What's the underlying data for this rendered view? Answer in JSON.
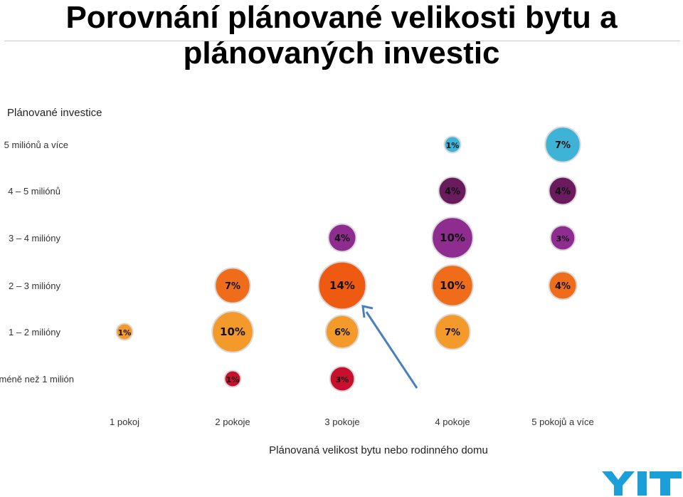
{
  "title": "Porovnání plánované velikosti bytu a plánovaných investic",
  "chart_data": {
    "type": "bubble",
    "title": "Porovnání plánované velikosti bytu a plánovaných investic",
    "ylabel": "Plánované investice",
    "xlabel": "Plánovaná velikost bytu nebo rodinného domu",
    "x_categories": [
      "1 pokoj",
      "2 pokoje",
      "3 pokoje",
      "4 pokoje",
      "5 pokojů a více"
    ],
    "y_categories": [
      "méně než 1 milión",
      "1 2 milióny",
      "2 3 milióny",
      "3 4 milióny",
      "4 5 miliónů",
      "5 miliónů a více"
    ],
    "y_category_labels": [
      "méně než 1 milión",
      "1 – 2 milióny",
      "2 – 3 milióny",
      "3 – 4 milióny",
      "4 – 5 miliónů",
      "5 miliónů a více"
    ],
    "points": [
      {
        "x": "1 pokoj",
        "y": "1 2 milióny",
        "value": 1,
        "label": "1%",
        "color": "#f39a2b"
      },
      {
        "x": "2 pokoje",
        "y": "méně než 1 milión",
        "value": 1,
        "label": "1%",
        "color": "#c8102e"
      },
      {
        "x": "2 pokoje",
        "y": "1 2 milióny",
        "value": 10,
        "label": "10%",
        "color": "#f39a2b"
      },
      {
        "x": "2 pokoje",
        "y": "2 3 milióny",
        "value": 7,
        "label": "7%",
        "color": "#ef6c1a"
      },
      {
        "x": "3 pokoje",
        "y": "méně než 1 milión",
        "value": 3,
        "label": "3%",
        "color": "#c8102e"
      },
      {
        "x": "3 pokoje",
        "y": "1 2 milióny",
        "value": 6,
        "label": "6%",
        "color": "#f39a2b"
      },
      {
        "x": "3 pokoje",
        "y": "2 3 milióny",
        "value": 14,
        "label": "14%",
        "color": "#ef5a12"
      },
      {
        "x": "3 pokoje",
        "y": "3 4 milióny",
        "value": 4,
        "label": "4%",
        "color": "#8e2d8f"
      },
      {
        "x": "4 pokoje",
        "y": "1 2 milióny",
        "value": 7,
        "label": "7%",
        "color": "#f39a2b"
      },
      {
        "x": "4 pokoje",
        "y": "2 3 milióny",
        "value": 10,
        "label": "10%",
        "color": "#ef6c1a"
      },
      {
        "x": "4 pokoje",
        "y": "3 4 milióny",
        "value": 10,
        "label": "10%",
        "color": "#8e2d8f"
      },
      {
        "x": "4 pokoje",
        "y": "4 5 miliónů",
        "value": 4,
        "label": "4%",
        "color": "#6a1b5e"
      },
      {
        "x": "4 pokoje",
        "y": "5 miliónů a více",
        "value": 1,
        "label": "1%",
        "color": "#3fb3d6"
      },
      {
        "x": "5 pokojů a více",
        "y": "2 3 milióny",
        "value": 4,
        "label": "4%",
        "color": "#ef6c1a"
      },
      {
        "x": "5 pokojů a více",
        "y": "3 4 milióny",
        "value": 3,
        "label": "3%",
        "color": "#8e2d8f"
      },
      {
        "x": "5 pokojů a více",
        "y": "4 5 miliónů",
        "value": 4,
        "label": "4%",
        "color": "#6a1b5e"
      },
      {
        "x": "5 pokojů a více",
        "y": "5 miliónů a více",
        "value": 7,
        "label": "7%",
        "color": "#3fb3d6"
      }
    ],
    "annotation": {
      "type": "arrow",
      "from": [
        "4 pokoje",
        "méně než 1 milión"
      ],
      "to": [
        "3 pokoje",
        "2 3 milióny"
      ],
      "color": "#4a7fbf"
    }
  },
  "logo": {
    "text": "YIT",
    "color": "#1a9fd9"
  }
}
